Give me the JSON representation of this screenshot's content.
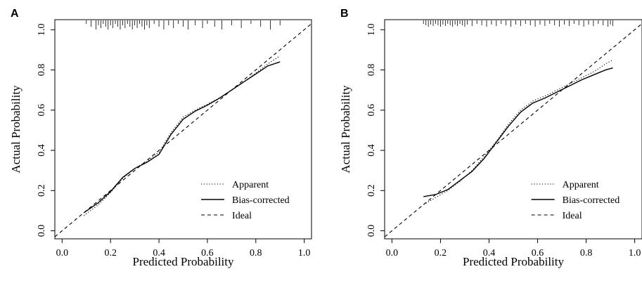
{
  "chart_data": [
    {
      "type": "line",
      "panel_label": "A",
      "xlabel": "Predicted Probability",
      "ylabel": "Actual Probability",
      "xlim": [
        -0.03,
        1.03
      ],
      "ylim": [
        -0.04,
        1.05
      ],
      "xticks": [
        "0.0",
        "0.2",
        "0.4",
        "0.6",
        "0.8",
        "1.0"
      ],
      "yticks": [
        "0.0",
        "0.2",
        "0.4",
        "0.6",
        "0.8",
        "1.0"
      ],
      "legend_position": "bottom-right",
      "series": [
        {
          "name": "Apparent",
          "style": "dotted",
          "x": [
            0.09,
            0.15,
            0.2,
            0.25,
            0.3,
            0.35,
            0.4,
            0.45,
            0.5,
            0.55,
            0.6,
            0.65,
            0.7,
            0.75,
            0.8,
            0.85,
            0.9
          ],
          "y": [
            0.075,
            0.13,
            0.19,
            0.26,
            0.31,
            0.345,
            0.39,
            0.49,
            0.565,
            0.6,
            0.63,
            0.66,
            0.7,
            0.74,
            0.785,
            0.83,
            0.87
          ]
        },
        {
          "name": "Bias-corrected",
          "style": "solid",
          "x": [
            0.09,
            0.15,
            0.2,
            0.25,
            0.3,
            0.35,
            0.4,
            0.45,
            0.5,
            0.55,
            0.6,
            0.65,
            0.7,
            0.75,
            0.8,
            0.85,
            0.9
          ],
          "y": [
            0.09,
            0.14,
            0.195,
            0.265,
            0.31,
            0.34,
            0.38,
            0.48,
            0.555,
            0.595,
            0.625,
            0.66,
            0.7,
            0.74,
            0.78,
            0.82,
            0.84
          ]
        },
        {
          "name": "Ideal",
          "style": "dashed",
          "x": [
            -0.03,
            1.03
          ],
          "y": [
            -0.03,
            1.03
          ]
        }
      ],
      "rug": [
        0.1,
        0.12,
        0.14,
        0.15,
        0.16,
        0.17,
        0.18,
        0.19,
        0.2,
        0.21,
        0.22,
        0.23,
        0.24,
        0.25,
        0.26,
        0.27,
        0.28,
        0.29,
        0.3,
        0.31,
        0.32,
        0.33,
        0.34,
        0.35,
        0.36,
        0.38,
        0.4,
        0.42,
        0.44,
        0.46,
        0.48,
        0.5,
        0.52,
        0.55,
        0.58,
        0.6,
        0.63,
        0.66,
        0.7,
        0.74,
        0.78,
        0.82,
        0.86,
        0.9
      ]
    },
    {
      "type": "line",
      "panel_label": "B",
      "xlabel": "Predicted Probability",
      "ylabel": "Actual Probability",
      "xlim": [
        -0.03,
        1.03
      ],
      "ylim": [
        -0.04,
        1.05
      ],
      "xticks": [
        "0.0",
        "0.2",
        "0.4",
        "0.6",
        "0.8",
        "1.0"
      ],
      "yticks": [
        "0.0",
        "0.2",
        "0.4",
        "0.6",
        "0.8",
        "1.0"
      ],
      "legend_position": "bottom-right",
      "series": [
        {
          "name": "Apparent",
          "style": "dotted",
          "x": [
            0.13,
            0.18,
            0.23,
            0.28,
            0.33,
            0.38,
            0.43,
            0.48,
            0.53,
            0.58,
            0.63,
            0.68,
            0.73,
            0.78,
            0.83,
            0.88,
            0.91
          ],
          "y": [
            0.13,
            0.165,
            0.2,
            0.245,
            0.3,
            0.37,
            0.445,
            0.53,
            0.6,
            0.645,
            0.67,
            0.7,
            0.73,
            0.76,
            0.79,
            0.83,
            0.85
          ]
        },
        {
          "name": "Bias-corrected",
          "style": "solid",
          "x": [
            0.13,
            0.18,
            0.23,
            0.28,
            0.33,
            0.38,
            0.43,
            0.48,
            0.53,
            0.58,
            0.63,
            0.68,
            0.73,
            0.78,
            0.83,
            0.88,
            0.91
          ],
          "y": [
            0.17,
            0.18,
            0.205,
            0.25,
            0.295,
            0.36,
            0.44,
            0.52,
            0.59,
            0.635,
            0.66,
            0.69,
            0.72,
            0.75,
            0.775,
            0.8,
            0.81
          ]
        },
        {
          "name": "Ideal",
          "style": "dashed",
          "x": [
            -0.03,
            1.03
          ],
          "y": [
            -0.03,
            1.03
          ]
        }
      ],
      "rug": [
        0.13,
        0.14,
        0.15,
        0.16,
        0.17,
        0.18,
        0.19,
        0.2,
        0.21,
        0.22,
        0.23,
        0.24,
        0.25,
        0.26,
        0.27,
        0.28,
        0.29,
        0.3,
        0.31,
        0.33,
        0.35,
        0.37,
        0.39,
        0.41,
        0.43,
        0.45,
        0.47,
        0.49,
        0.51,
        0.53,
        0.55,
        0.57,
        0.59,
        0.61,
        0.63,
        0.65,
        0.67,
        0.69,
        0.71,
        0.73,
        0.75,
        0.77,
        0.79,
        0.81,
        0.83,
        0.85,
        0.87,
        0.89,
        0.9,
        0.91
      ]
    }
  ]
}
